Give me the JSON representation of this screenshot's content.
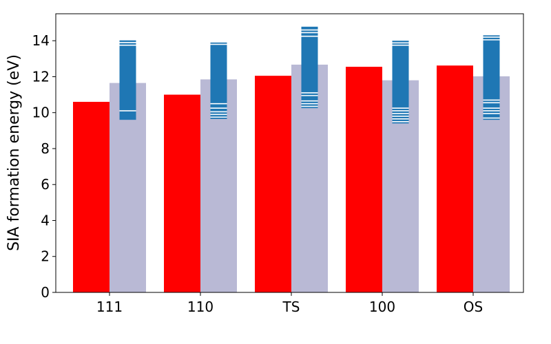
{
  "chart_data": {
    "type": "bar",
    "categories": [
      "111",
      "110",
      "TS",
      "100",
      "OS"
    ],
    "ylabel": "SIA formation energy (eV)",
    "xlabel": "",
    "ylim": [
      0,
      15.5
    ],
    "yticks": [
      0,
      2,
      4,
      6,
      8,
      10,
      12,
      14
    ],
    "grid": false,
    "series": [
      {
        "color": "#ff0000",
        "values": [
          10.6,
          11.0,
          12.05,
          12.55,
          12.62
        ]
      },
      {
        "color": "#b9b9d5",
        "values": [
          11.65,
          11.85,
          12.67,
          11.8,
          12.02
        ]
      }
    ],
    "distributions": {
      "color": "#1f77b4",
      "gap_color": "#ffffff",
      "items": [
        {
          "category": "111",
          "min": 9.6,
          "max": 14.02,
          "lines": [
            10.1,
            13.75,
            13.9
          ]
        },
        {
          "category": "110",
          "min": 9.65,
          "max": 13.9,
          "lines": [
            9.75,
            9.9,
            10.05,
            10.25,
            10.5,
            13.8
          ]
        },
        {
          "category": "TS",
          "min": 10.25,
          "max": 14.78,
          "lines": [
            10.35,
            10.5,
            10.65,
            10.95,
            11.1,
            14.25,
            14.45,
            14.6
          ]
        },
        {
          "category": "100",
          "min": 9.4,
          "max": 14.0,
          "lines": [
            9.5,
            9.65,
            9.8,
            9.95,
            10.1,
            10.25,
            13.75,
            13.88
          ]
        },
        {
          "category": "OS",
          "min": 9.6,
          "max": 14.3,
          "lines": [
            9.7,
            9.95,
            10.1,
            10.25,
            10.55,
            10.7,
            14.05,
            14.2
          ]
        }
      ]
    }
  }
}
